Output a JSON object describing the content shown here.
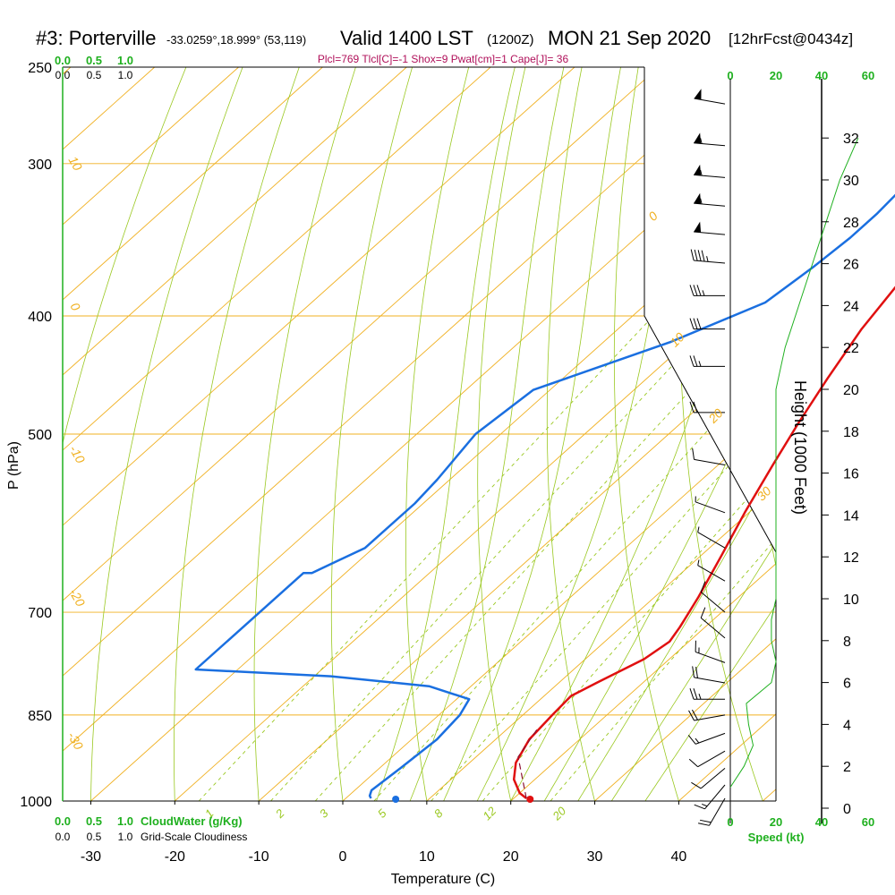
{
  "header": {
    "station": "#3: Porterville",
    "coords": "-33.0259°,18.999° (53,119)",
    "valid": "Valid 1400 LST",
    "utc": "(1200Z)",
    "date": "MON 21 Sep 2020",
    "forecast": "[12hrFcst@0434z]"
  },
  "indices_line": "Plcl=769 Tlcl[C]=-1 Shox=9 Pwat[cm]=1 Cape[J]= 36",
  "colors": {
    "temperature": "#e01010",
    "dewpoint": "#1a6fe0",
    "isotherm": "#f0b020",
    "adiabat": "#9ac820",
    "mixing_ratio": "#9ac820",
    "cloud": "#1fb01f",
    "indices": "#b0105a"
  },
  "cloud_axis": {
    "top_green": [
      "0.0",
      "0.5",
      "1.0"
    ],
    "top_black": [
      "0.0",
      "0.5",
      "1.0"
    ],
    "bottom_green": [
      "0.0",
      "0.5",
      "1.0"
    ],
    "bottom_black": [
      "0.0",
      "0.5",
      "1.0"
    ],
    "cloudwater_label": "CloudWater (g/Kg)",
    "cloudiness_label": "Grid-Scale Cloudiness"
  },
  "wind_axis": {
    "top_ticks": [
      "0",
      "20",
      "40",
      "60"
    ],
    "bottom_ticks": [
      "0",
      "20",
      "40",
      "60"
    ],
    "label": "Speed (kt)"
  },
  "chart_data": {
    "type": "line",
    "title": "",
    "xlabel": "Temperature (C)",
    "ylabel": "P (hPa)",
    "xlim": [
      -35,
      45
    ],
    "ylim": [
      1000,
      250
    ],
    "yscale": "log",
    "x_ticks": [
      "-30",
      "-20",
      "-10",
      "0",
      "10",
      "20",
      "30",
      "40"
    ],
    "y_ticks": [
      "250",
      "300",
      "400",
      "500",
      "700",
      "850",
      "1000"
    ],
    "height_axis": {
      "label": "Height (1000 Feet)",
      "ticks": [
        "0",
        "2",
        "4",
        "6",
        "8",
        "10",
        "12",
        "14",
        "16",
        "18",
        "20",
        "22",
        "24",
        "26",
        "28",
        "30",
        "32"
      ]
    },
    "isotherm_labels": [
      "10",
      "0",
      "-10",
      "-20",
      "-30",
      "0",
      "10",
      "20",
      "30"
    ],
    "mixing_ratio_labels": [
      "1",
      "2",
      "3",
      "5",
      "8",
      "12",
      "20"
    ],
    "series": [
      {
        "name": "",
        "values": [
          [
            21.5,
            995
          ],
          [
            20,
            985
          ],
          [
            17.5,
            960
          ],
          [
            15.5,
            930
          ],
          [
            14,
            890
          ],
          [
            13.5,
            850
          ],
          [
            13.2,
            820
          ],
          [
            14.5,
            800
          ],
          [
            17,
            765
          ],
          [
            17.7,
            740
          ],
          [
            17,
            720
          ],
          [
            15.2,
            680
          ],
          [
            12.5,
            630
          ],
          [
            9.5,
            580
          ],
          [
            6.5,
            530
          ],
          [
            4,
            490
          ],
          [
            1.5,
            450
          ],
          [
            -1,
            410
          ],
          [
            -3,
            370
          ],
          [
            -4.5,
            340
          ],
          [
            -5.5,
            315
          ],
          [
            -6,
            290
          ],
          [
            -6,
            268
          ]
        ]
      },
      {
        "name": "",
        "values": [
          [
            3,
            995
          ],
          [
            2.5,
            990
          ],
          [
            2,
            980
          ],
          [
            2.5,
            940
          ],
          [
            3,
            890
          ],
          [
            2.5,
            850
          ],
          [
            1.5,
            825
          ],
          [
            -5,
            805
          ],
          [
            -18,
            790
          ],
          [
            -35,
            780
          ],
          [
            -35,
            650
          ],
          [
            -34,
            650
          ],
          [
            -31,
            620
          ],
          [
            -31,
            570
          ],
          [
            -31.5,
            545
          ],
          [
            -33,
            500
          ],
          [
            -32,
            460
          ],
          [
            -22,
            420
          ],
          [
            -16,
            390
          ],
          [
            -15,
            365
          ],
          [
            -14.5,
            345
          ],
          [
            -14.5,
            330
          ],
          [
            -15,
            310
          ],
          [
            -16,
            282
          ],
          [
            -16.5,
            268
          ]
        ]
      }
    ],
    "parcel_path": [
      [
        21.5,
        995
      ],
      [
        15,
        920
      ],
      [
        13.5,
        870
      ]
    ],
    "surface_temperature": 22.3,
    "surface_dewpoint": 6.3,
    "winds": [
      {
        "p": 268,
        "dir": 280,
        "spd": 50
      },
      {
        "p": 290,
        "dir": 275,
        "spd": 55
      },
      {
        "p": 308,
        "dir": 275,
        "spd": 55
      },
      {
        "p": 325,
        "dir": 275,
        "spd": 55
      },
      {
        "p": 343,
        "dir": 275,
        "spd": 50
      },
      {
        "p": 362,
        "dir": 275,
        "spd": 45
      },
      {
        "p": 385,
        "dir": 270,
        "spd": 35
      },
      {
        "p": 410,
        "dir": 270,
        "spd": 30
      },
      {
        "p": 440,
        "dir": 270,
        "spd": 25
      },
      {
        "p": 480,
        "dir": 270,
        "spd": 20
      },
      {
        "p": 530,
        "dir": 280,
        "spd": 10
      },
      {
        "p": 580,
        "dir": 290,
        "spd": 5
      },
      {
        "p": 620,
        "dir": 300,
        "spd": 5
      },
      {
        "p": 660,
        "dir": 300,
        "spd": 5
      },
      {
        "p": 700,
        "dir": 310,
        "spd": 10
      },
      {
        "p": 735,
        "dir": 310,
        "spd": 10
      },
      {
        "p": 770,
        "dir": 290,
        "spd": 15
      },
      {
        "p": 800,
        "dir": 280,
        "spd": 20
      },
      {
        "p": 825,
        "dir": 270,
        "spd": 25
      },
      {
        "p": 850,
        "dir": 260,
        "spd": 20
      },
      {
        "p": 880,
        "dir": 250,
        "spd": 15
      },
      {
        "p": 910,
        "dir": 240,
        "spd": 10
      },
      {
        "p": 940,
        "dir": 230,
        "spd": 10
      },
      {
        "p": 970,
        "dir": 220,
        "spd": 15
      },
      {
        "p": 995,
        "dir": 210,
        "spd": 20
      }
    ],
    "wind_speed_profile": [
      [
        0,
        1
      ],
      [
        0.6,
        2
      ],
      [
        1,
        3
      ],
      [
        0.8,
        4
      ],
      [
        0.7,
        5
      ],
      [
        1.8,
        6
      ],
      [
        2,
        7
      ],
      [
        1.8,
        8
      ],
      [
        1.8,
        9
      ],
      [
        2,
        10
      ],
      [
        2,
        12
      ],
      [
        2,
        14
      ],
      [
        2,
        16
      ],
      [
        2,
        18
      ],
      [
        2,
        20
      ],
      [
        2.4,
        22
      ],
      [
        3,
        24
      ],
      [
        3.6,
        26
      ],
      [
        4.2,
        28
      ],
      [
        4.8,
        30
      ],
      [
        5.6,
        32
      ]
    ]
  }
}
